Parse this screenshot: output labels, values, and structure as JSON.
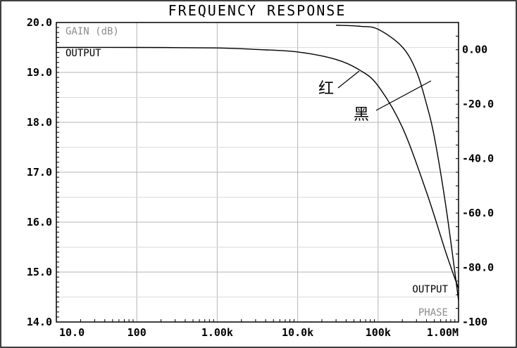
{
  "chart_data": {
    "type": "line",
    "title": "FREQUENCY RESPONSE",
    "x_scale": "log",
    "xlim": [
      10,
      1000000
    ],
    "x_tick_labels": [
      "10.0",
      "100",
      "1.00k",
      "10.0k",
      "100k",
      "1.00M"
    ],
    "left_axis": {
      "ylim": [
        14.0,
        20.0
      ],
      "tick_labels": [
        "20.0",
        "19.0",
        "18.0",
        "17.0",
        "16.0",
        "15.0",
        "14.0"
      ]
    },
    "right_axis": {
      "ylim": [
        -100,
        10
      ],
      "tick_labels": [
        "0.00",
        "-20.0",
        "-40.0",
        "-60.0",
        "-80.0",
        "-100"
      ]
    },
    "grid": true,
    "legend": [
      {
        "text": "GAIN (dB)",
        "color": "#8c8c8c",
        "placement": "top-left"
      },
      {
        "text": "OUTPUT",
        "color": "#000000",
        "placement": "top-left"
      },
      {
        "text": "OUTPUT",
        "color": "#000000",
        "placement": "bottom-right"
      },
      {
        "text": "PHASE",
        "color": "#8c8c8c",
        "placement": "bottom-right"
      }
    ],
    "series": [
      {
        "axis": "left",
        "color": "#000000",
        "x": [
          10,
          100,
          1000,
          3000,
          10000,
          30000,
          60000,
          100000,
          200000,
          400000,
          700000,
          1000000
        ],
        "y": [
          19.5,
          19.5,
          19.49,
          19.46,
          19.41,
          19.26,
          19.04,
          18.73,
          17.9,
          16.6,
          15.38,
          14.67
        ]
      },
      {
        "axis": "right",
        "color": "#000000",
        "x": [
          30000,
          60000,
          100000,
          200000,
          300000,
          400000,
          500000,
          700000,
          1000000
        ],
        "y": [
          9,
          8.6,
          7.5,
          1,
          -8,
          -20,
          -32,
          -58,
          -92
        ]
      }
    ],
    "annotations": [
      {
        "text": "红"
      },
      {
        "text": "黑"
      }
    ]
  }
}
